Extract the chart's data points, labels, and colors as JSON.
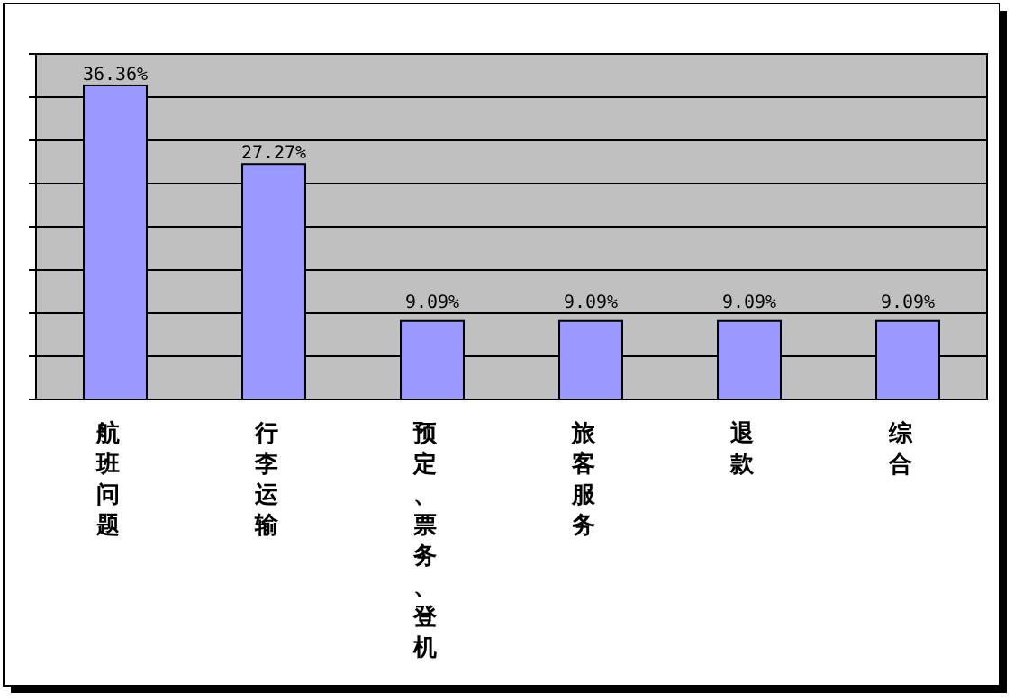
{
  "chart_data": {
    "type": "bar",
    "categories": [
      "航班问题",
      "行李运输",
      "预定、票务、登机",
      "旅客服务",
      "退款",
      "综合"
    ],
    "values": [
      36.36,
      27.27,
      9.09,
      9.09,
      9.09,
      9.09
    ],
    "value_labels": [
      "36.36%",
      "27.27%",
      "9.09%",
      "9.09%",
      "9.09%",
      "9.09%"
    ],
    "color": "#9999ff",
    "ylim": [
      0,
      40
    ],
    "yticks": [
      {
        "value": 0,
        "label": null
      },
      {
        "value": 5,
        "label": null
      },
      {
        "value": 10,
        "label": null
      },
      {
        "value": 15,
        "label": null
      },
      {
        "value": 20,
        "label": null
      },
      {
        "value": 25,
        "label": null
      },
      {
        "value": 30,
        "label": null
      },
      {
        "value": 35,
        "label": null
      },
      {
        "value": 40,
        "label": null
      }
    ],
    "grid": "y",
    "tick_labels": "x"
  }
}
